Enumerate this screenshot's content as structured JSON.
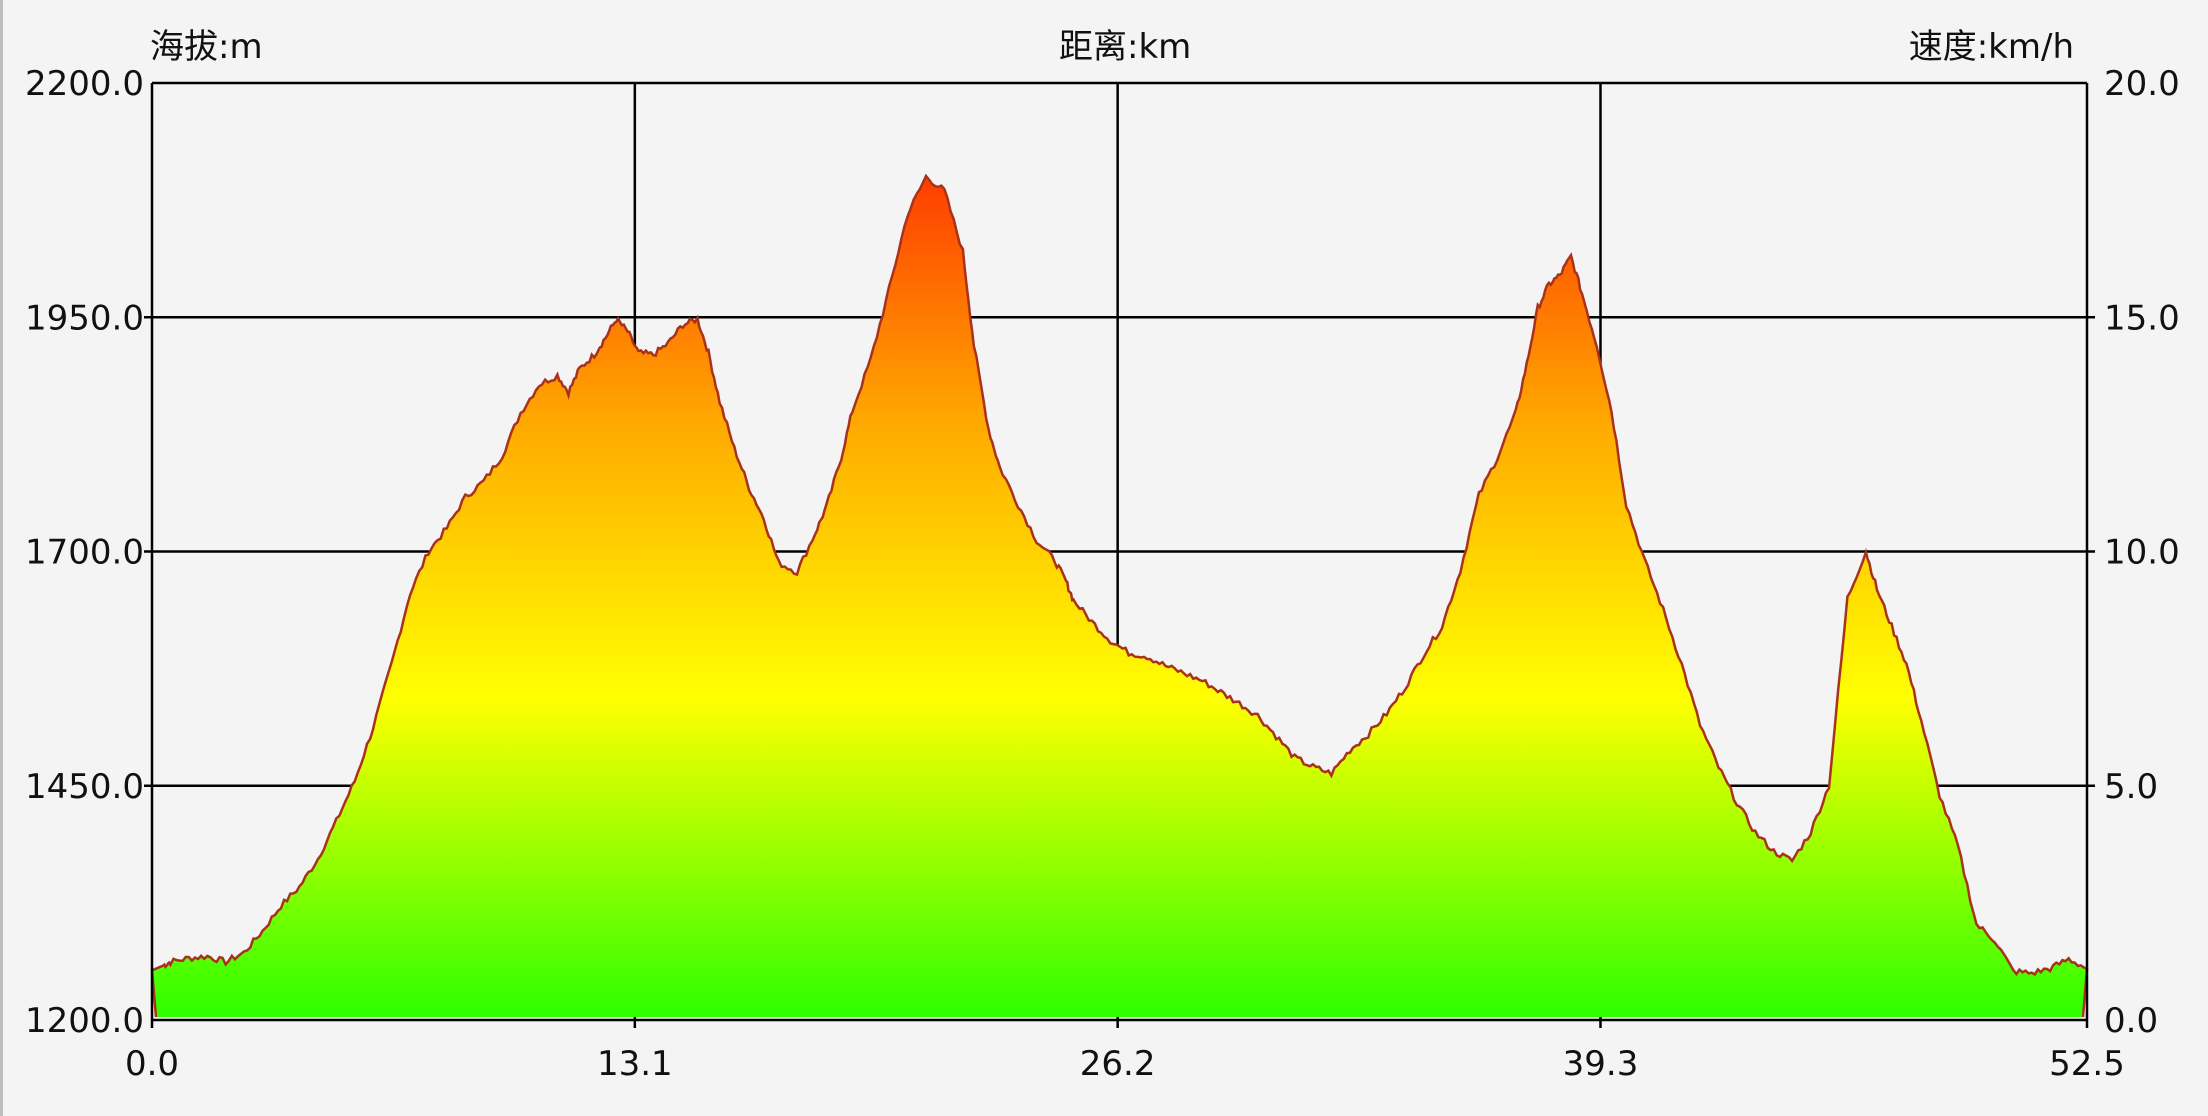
{
  "chart_data": {
    "type": "area",
    "axes": {
      "left_title": "海拔:m",
      "top_title": "距离:km",
      "right_title": "速度:km/h"
    },
    "x_ticks": [
      "0.0",
      "13.1",
      "26.2",
      "39.3",
      "52.5"
    ],
    "x_tick_values": [
      0,
      13.1,
      26.2,
      39.3,
      52.5
    ],
    "y_left_ticks": [
      "2200.0",
      "1950.0",
      "1700.0",
      "1450.0",
      "1200.0"
    ],
    "y_left_tick_values": [
      2200,
      1950,
      1700,
      1450,
      1200
    ],
    "y_right_ticks": [
      "20.0",
      "15.0",
      "10.0",
      "5.0",
      "0.0"
    ],
    "xlim": [
      0,
      52.5
    ],
    "ylim": [
      1200,
      2200
    ],
    "y_right_lim": [
      0,
      20
    ],
    "grid": true,
    "colors": {
      "line": "#a8321b",
      "fill_low": "#2cff00",
      "fill_mid": "#ffff00",
      "fill_high": "#ff3a00"
    },
    "series": [
      {
        "x": [
          0,
          0.3,
          0.5,
          1.0,
          1.5,
          2.0,
          2.5,
          3.0,
          3.5,
          4.0,
          4.5,
          5.0,
          5.5,
          6.0,
          6.5,
          7.0,
          7.5,
          8.0,
          8.5,
          9.0,
          9.5,
          10.0,
          10.5,
          11.0,
          11.3,
          11.6,
          12.0,
          12.3,
          12.6,
          12.9,
          13.2,
          13.6,
          14.0,
          14.4,
          14.8,
          15.1,
          15.4,
          15.8,
          16.2,
          16.6,
          17.0,
          17.5,
          18.0,
          18.3,
          18.7,
          19.0,
          19.5,
          20.0,
          20.5,
          21.0,
          21.5,
          22.0,
          22.3,
          22.7,
          23.0,
          23.5,
          24.0,
          24.5,
          24.8,
          25.0,
          25.5,
          26.0,
          26.5,
          27.0,
          27.5,
          28.0,
          28.5,
          29.0,
          29.5,
          30.0,
          30.5,
          31.0,
          31.5,
          32.0,
          32.5,
          33.0,
          33.5,
          34.0,
          34.5,
          35.0,
          35.5,
          36.0,
          36.5,
          37.0,
          37.3,
          37.6,
          37.9,
          38.2,
          38.5,
          38.8,
          39.2,
          39.6,
          40.0,
          40.5,
          41.0,
          41.5,
          42.0,
          42.5,
          43.0,
          43.5,
          44.0,
          44.5,
          45.0,
          45.5,
          46.0,
          46.5,
          46.8,
          47.2,
          47.6,
          48.0,
          48.5,
          49.0,
          49.5,
          50.0,
          50.5,
          51.0,
          51.5,
          52.0,
          52.5
        ],
        "y": [
          1253,
          1258,
          1262,
          1266,
          1268,
          1262,
          1272,
          1295,
          1322,
          1342,
          1372,
          1412,
          1455,
          1512,
          1580,
          1655,
          1700,
          1725,
          1758,
          1775,
          1802,
          1848,
          1878,
          1888,
          1870,
          1895,
          1910,
          1928,
          1948,
          1935,
          1912,
          1910,
          1922,
          1942,
          1948,
          1912,
          1860,
          1810,
          1768,
          1735,
          1688,
          1678,
          1720,
          1748,
          1800,
          1850,
          1905,
          1980,
          2060,
          2100,
          2085,
          2020,
          1920,
          1830,
          1790,
          1750,
          1712,
          1690,
          1668,
          1648,
          1625,
          1605,
          1592,
          1588,
          1578,
          1570,
          1562,
          1550,
          1538,
          1525,
          1503,
          1480,
          1470,
          1463,
          1488,
          1505,
          1527,
          1555,
          1590,
          1620,
          1680,
          1760,
          1800,
          1848,
          1900,
          1960,
          1985,
          1995,
          2015,
          1975,
          1920,
          1850,
          1750,
          1690,
          1638,
          1580,
          1515,
          1470,
          1432,
          1400,
          1380,
          1370,
          1400,
          1450,
          1650,
          1700,
          1660,
          1620,
          1580,
          1520,
          1440,
          1385,
          1302,
          1285,
          1252,
          1250,
          1255,
          1265,
          1255
        ]
      }
    ]
  }
}
